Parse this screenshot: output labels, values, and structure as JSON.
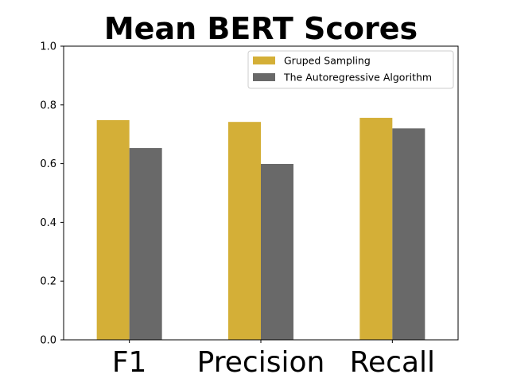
{
  "chart_data": {
    "type": "bar",
    "title": "Mean BERT Scores",
    "xlabel": "",
    "ylabel": "",
    "categories": [
      "F1",
      "Precision",
      "Recall"
    ],
    "series": [
      {
        "name": "Gruped Sampling",
        "values": [
          0.748,
          0.742,
          0.756
        ],
        "color": "#d4af37"
      },
      {
        "name": "The Autoregressive Algorithm",
        "values": [
          0.653,
          0.599,
          0.72
        ],
        "color": "#696969"
      }
    ],
    "ylim": [
      0.0,
      1.0
    ],
    "yticks": [
      "0.0",
      "0.2",
      "0.4",
      "0.6",
      "0.8",
      "1.0"
    ],
    "grid": false,
    "legend_position": "top-right"
  }
}
